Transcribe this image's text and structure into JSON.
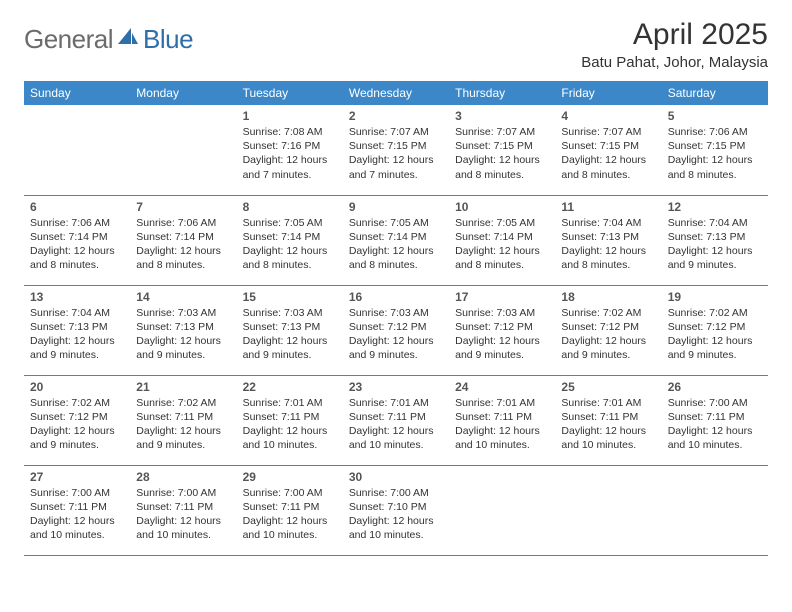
{
  "logo": {
    "part1": "General",
    "part2": "Blue"
  },
  "title": "April 2025",
  "location": "Batu Pahat, Johor, Malaysia",
  "colors": {
    "header_bg": "#3b87c8",
    "header_text": "#ffffff",
    "divider": "#3b87c8",
    "logo_gray": "#6b6b6b",
    "logo_blue": "#2f6fa8",
    "body_text": "#333333"
  },
  "weekdays": [
    "Sunday",
    "Monday",
    "Tuesday",
    "Wednesday",
    "Thursday",
    "Friday",
    "Saturday"
  ],
  "weeks": [
    [
      null,
      null,
      {
        "n": "1",
        "sr": "7:08 AM",
        "ss": "7:16 PM",
        "dl": "12 hours and 7 minutes."
      },
      {
        "n": "2",
        "sr": "7:07 AM",
        "ss": "7:15 PM",
        "dl": "12 hours and 7 minutes."
      },
      {
        "n": "3",
        "sr": "7:07 AM",
        "ss": "7:15 PM",
        "dl": "12 hours and 8 minutes."
      },
      {
        "n": "4",
        "sr": "7:07 AM",
        "ss": "7:15 PM",
        "dl": "12 hours and 8 minutes."
      },
      {
        "n": "5",
        "sr": "7:06 AM",
        "ss": "7:15 PM",
        "dl": "12 hours and 8 minutes."
      }
    ],
    [
      {
        "n": "6",
        "sr": "7:06 AM",
        "ss": "7:14 PM",
        "dl": "12 hours and 8 minutes."
      },
      {
        "n": "7",
        "sr": "7:06 AM",
        "ss": "7:14 PM",
        "dl": "12 hours and 8 minutes."
      },
      {
        "n": "8",
        "sr": "7:05 AM",
        "ss": "7:14 PM",
        "dl": "12 hours and 8 minutes."
      },
      {
        "n": "9",
        "sr": "7:05 AM",
        "ss": "7:14 PM",
        "dl": "12 hours and 8 minutes."
      },
      {
        "n": "10",
        "sr": "7:05 AM",
        "ss": "7:14 PM",
        "dl": "12 hours and 8 minutes."
      },
      {
        "n": "11",
        "sr": "7:04 AM",
        "ss": "7:13 PM",
        "dl": "12 hours and 8 minutes."
      },
      {
        "n": "12",
        "sr": "7:04 AM",
        "ss": "7:13 PM",
        "dl": "12 hours and 9 minutes."
      }
    ],
    [
      {
        "n": "13",
        "sr": "7:04 AM",
        "ss": "7:13 PM",
        "dl": "12 hours and 9 minutes."
      },
      {
        "n": "14",
        "sr": "7:03 AM",
        "ss": "7:13 PM",
        "dl": "12 hours and 9 minutes."
      },
      {
        "n": "15",
        "sr": "7:03 AM",
        "ss": "7:13 PM",
        "dl": "12 hours and 9 minutes."
      },
      {
        "n": "16",
        "sr": "7:03 AM",
        "ss": "7:12 PM",
        "dl": "12 hours and 9 minutes."
      },
      {
        "n": "17",
        "sr": "7:03 AM",
        "ss": "7:12 PM",
        "dl": "12 hours and 9 minutes."
      },
      {
        "n": "18",
        "sr": "7:02 AM",
        "ss": "7:12 PM",
        "dl": "12 hours and 9 minutes."
      },
      {
        "n": "19",
        "sr": "7:02 AM",
        "ss": "7:12 PM",
        "dl": "12 hours and 9 minutes."
      }
    ],
    [
      {
        "n": "20",
        "sr": "7:02 AM",
        "ss": "7:12 PM",
        "dl": "12 hours and 9 minutes."
      },
      {
        "n": "21",
        "sr": "7:02 AM",
        "ss": "7:11 PM",
        "dl": "12 hours and 9 minutes."
      },
      {
        "n": "22",
        "sr": "7:01 AM",
        "ss": "7:11 PM",
        "dl": "12 hours and 10 minutes."
      },
      {
        "n": "23",
        "sr": "7:01 AM",
        "ss": "7:11 PM",
        "dl": "12 hours and 10 minutes."
      },
      {
        "n": "24",
        "sr": "7:01 AM",
        "ss": "7:11 PM",
        "dl": "12 hours and 10 minutes."
      },
      {
        "n": "25",
        "sr": "7:01 AM",
        "ss": "7:11 PM",
        "dl": "12 hours and 10 minutes."
      },
      {
        "n": "26",
        "sr": "7:00 AM",
        "ss": "7:11 PM",
        "dl": "12 hours and 10 minutes."
      }
    ],
    [
      {
        "n": "27",
        "sr": "7:00 AM",
        "ss": "7:11 PM",
        "dl": "12 hours and 10 minutes."
      },
      {
        "n": "28",
        "sr": "7:00 AM",
        "ss": "7:11 PM",
        "dl": "12 hours and 10 minutes."
      },
      {
        "n": "29",
        "sr": "7:00 AM",
        "ss": "7:11 PM",
        "dl": "12 hours and 10 minutes."
      },
      {
        "n": "30",
        "sr": "7:00 AM",
        "ss": "7:10 PM",
        "dl": "12 hours and 10 minutes."
      },
      null,
      null,
      null
    ]
  ],
  "labels": {
    "sunrise": "Sunrise:",
    "sunset": "Sunset:",
    "daylight": "Daylight:"
  }
}
